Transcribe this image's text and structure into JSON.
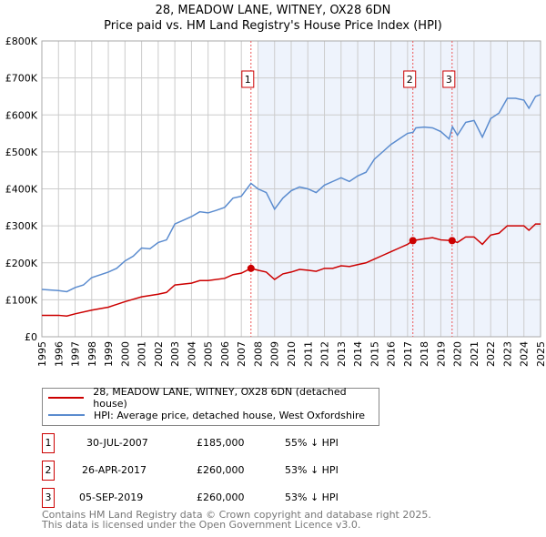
{
  "chart_data": {
    "type": "line",
    "title": "28, MEADOW LANE, WITNEY, OX28 6DN",
    "subtitle": "Price paid vs. HM Land Registry's House Price Index (HPI)",
    "xlim": [
      1995,
      2025
    ],
    "ylim": [
      0,
      800000
    ],
    "x_ticks": [
      "1995",
      "1996",
      "1997",
      "1998",
      "1999",
      "2000",
      "2001",
      "2002",
      "2003",
      "2004",
      "2005",
      "2006",
      "2007",
      "2008",
      "2009",
      "2010",
      "2011",
      "2012",
      "2013",
      "2014",
      "2015",
      "2016",
      "2017",
      "2018",
      "2019",
      "2020",
      "2021",
      "2022",
      "2023",
      "2024",
      "2025"
    ],
    "y_ticks": [
      {
        "v": 0,
        "label": "£0"
      },
      {
        "v": 100000,
        "label": "£100K"
      },
      {
        "v": 200000,
        "label": "£200K"
      },
      {
        "v": 300000,
        "label": "£300K"
      },
      {
        "v": 400000,
        "label": "£400K"
      },
      {
        "v": 500000,
        "label": "£500K"
      },
      {
        "v": 600000,
        "label": "£600K"
      },
      {
        "v": 700000,
        "label": "£700K"
      },
      {
        "v": 800000,
        "label": "£800K"
      }
    ],
    "grid": true,
    "series": [
      {
        "name": "28, MEADOW LANE, WITNEY, OX28 6DN (detached house)",
        "color": "#cc0000",
        "x": [
          1995,
          1996,
          1996.5,
          1997,
          1998,
          1999,
          2000,
          2001,
          2002,
          2002.5,
          2003,
          2004,
          2004.5,
          2005,
          2006,
          2006.5,
          2007,
          2007.58,
          2008,
          2008.5,
          2009,
          2009.5,
          2010,
          2010.5,
          2011,
          2011.5,
          2012,
          2012.5,
          2013,
          2013.5,
          2014,
          2014.5,
          2015,
          2015.5,
          2016,
          2016.5,
          2017,
          2017.32,
          2018,
          2018.5,
          2019,
          2019.68,
          2020,
          2020.5,
          2021,
          2021.5,
          2022,
          2022.5,
          2023,
          2023.5,
          2024,
          2024.3,
          2024.7,
          2025
        ],
        "y": [
          58000,
          58000,
          56000,
          62000,
          72000,
          80000,
          95000,
          108000,
          115000,
          120000,
          140000,
          145000,
          152000,
          152000,
          158000,
          168000,
          172000,
          185000,
          180000,
          175000,
          155000,
          170000,
          175000,
          182000,
          180000,
          177000,
          185000,
          185000,
          192000,
          190000,
          195000,
          200000,
          210000,
          220000,
          230000,
          240000,
          250000,
          260000,
          265000,
          268000,
          262000,
          260000,
          255000,
          270000,
          270000,
          250000,
          275000,
          280000,
          300000,
          300000,
          300000,
          288000,
          305000,
          305000
        ]
      },
      {
        "name": "HPI: Average price, detached house, West Oxfordshire",
        "color": "#5b8ccf",
        "x": [
          1995,
          1996,
          1996.5,
          1997,
          1997.5,
          1998,
          1999,
          1999.5,
          2000,
          2000.5,
          2001,
          2001.5,
          2002,
          2002.5,
          2003,
          2003.5,
          2004,
          2004.5,
          2005,
          2005.5,
          2006,
          2006.5,
          2007,
          2007.58,
          2008,
          2008.5,
          2009,
          2009.5,
          2010,
          2010.5,
          2011,
          2011.5,
          2012,
          2012.5,
          2013,
          2013.5,
          2014,
          2014.5,
          2015,
          2015.5,
          2016,
          2016.5,
          2017,
          2017.33,
          2017.5,
          2018,
          2018.5,
          2019,
          2019.5,
          2019.7,
          2020,
          2020.5,
          2021,
          2021.5,
          2022,
          2022.5,
          2023,
          2023.5,
          2024,
          2024.3,
          2024.7,
          2025
        ],
        "y": [
          128000,
          125000,
          122000,
          133000,
          140000,
          160000,
          175000,
          185000,
          205000,
          218000,
          240000,
          238000,
          255000,
          262000,
          305000,
          315000,
          325000,
          338000,
          335000,
          342000,
          350000,
          375000,
          380000,
          415000,
          400000,
          390000,
          345000,
          375000,
          395000,
          405000,
          400000,
          390000,
          410000,
          420000,
          430000,
          420000,
          435000,
          445000,
          480000,
          500000,
          520000,
          535000,
          550000,
          553000,
          565000,
          567000,
          565000,
          555000,
          535000,
          568000,
          545000,
          580000,
          585000,
          540000,
          590000,
          605000,
          645000,
          645000,
          640000,
          618000,
          650000,
          655000
        ]
      }
    ],
    "sales": [
      {
        "label": "1",
        "x": 2007.58,
        "y": 185000,
        "date": "30-JUL-2007",
        "price": "£185,000",
        "hpi": "55% ↓ HPI"
      },
      {
        "label": "2",
        "x": 2017.32,
        "y": 260000,
        "date": "26-APR-2017",
        "price": "£260,000",
        "hpi": "53% ↓ HPI"
      },
      {
        "label": "3",
        "x": 2019.68,
        "y": 260000,
        "date": "05-SEP-2019",
        "price": "£260,000",
        "hpi": "53% ↓ HPI"
      }
    ],
    "shade_from": 2008,
    "legend_placement": "below"
  },
  "footer": {
    "line1": "Contains HM Land Registry data © Crown copyright and database right 2025.",
    "line2": "This data is licensed under the Open Government Licence v3.0."
  }
}
